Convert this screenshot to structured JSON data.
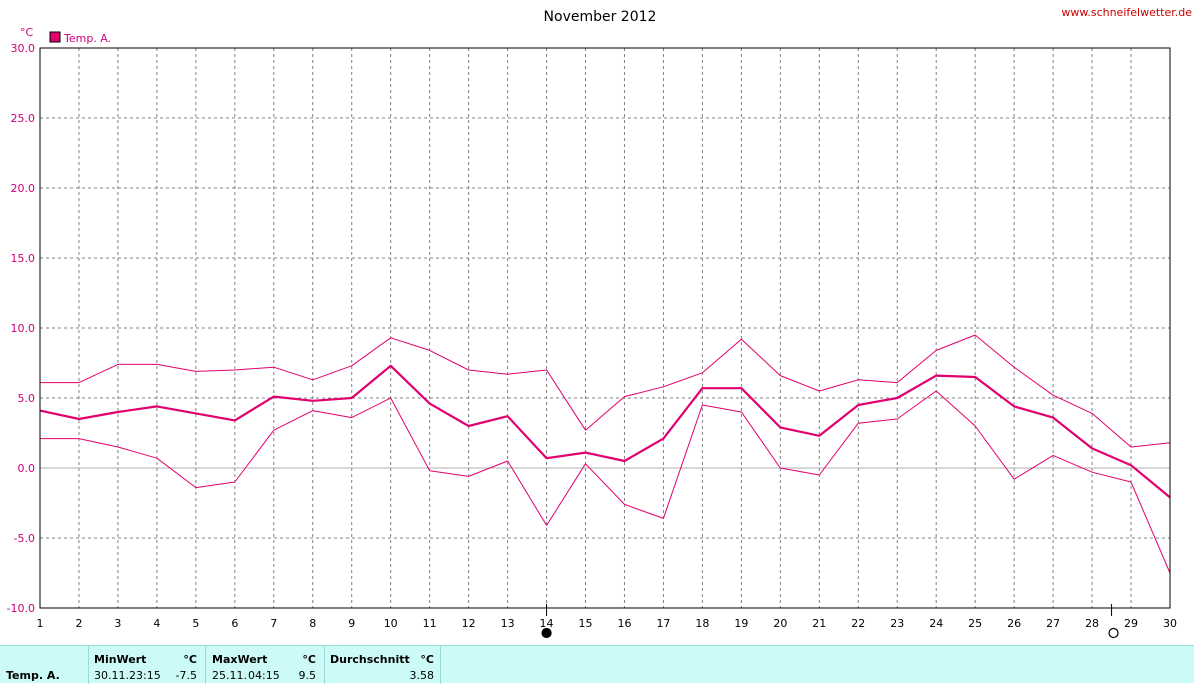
{
  "site": "www.schneifelwetter.de",
  "chart_data": {
    "type": "line",
    "title": "November 2012",
    "ylabel": "°C",
    "ylim": [
      -10,
      30
    ],
    "yticks": [
      "30.0",
      "25.0",
      "20.0",
      "15.0",
      "10.0",
      "5.0",
      "0.0",
      "-5.0",
      "-10.0"
    ],
    "xlim": [
      1,
      30
    ],
    "x": [
      1,
      2,
      3,
      4,
      5,
      6,
      7,
      8,
      9,
      10,
      11,
      12,
      13,
      14,
      15,
      16,
      17,
      18,
      19,
      20,
      21,
      22,
      23,
      24,
      25,
      26,
      27,
      28,
      29,
      30
    ],
    "xtick_labels": [
      "1",
      "2",
      "3",
      "4",
      "5",
      "6",
      "7",
      "8",
      "9",
      "10",
      "11",
      "12",
      "13",
      "14",
      "15",
      "16",
      "17",
      "18",
      "19",
      "20",
      "21",
      "22",
      "23",
      "24",
      "25",
      "26",
      "27",
      "28",
      "29",
      "30"
    ],
    "grid": true,
    "legend": "top-left",
    "legend_label": "Temp. A.",
    "color": "#e0006f",
    "series": [
      {
        "role": "max",
        "values": [
          6.1,
          6.1,
          7.4,
          7.4,
          6.9,
          7.0,
          7.2,
          6.3,
          7.3,
          9.3,
          8.4,
          7.0,
          6.7,
          7.0,
          2.7,
          5.1,
          5.8,
          6.8,
          9.2,
          6.6,
          5.5,
          6.3,
          6.1,
          8.4,
          9.5,
          7.2,
          5.2,
          3.9,
          1.5,
          1.8
        ]
      },
      {
        "role": "avg",
        "values": [
          4.1,
          3.5,
          4.0,
          4.4,
          3.9,
          3.4,
          5.1,
          4.8,
          5.0,
          7.3,
          4.6,
          3.0,
          3.7,
          0.7,
          1.1,
          0.5,
          2.1,
          5.7,
          5.7,
          2.9,
          2.3,
          4.5,
          5.0,
          6.6,
          6.5,
          4.4,
          3.6,
          1.4,
          0.2,
          -2.1
        ]
      },
      {
        "role": "min",
        "values": [
          2.1,
          2.1,
          1.5,
          0.7,
          -1.4,
          -1.0,
          2.7,
          4.1,
          3.6,
          5.0,
          -0.2,
          -0.6,
          0.5,
          -4.1,
          0.3,
          -2.6,
          -3.6,
          4.5,
          4.0,
          0.0,
          -0.5,
          3.2,
          3.5,
          5.5,
          3.0,
          -0.8,
          0.9,
          -0.3,
          -1.0,
          -7.5
        ]
      }
    ],
    "markers": [
      {
        "x": 14,
        "symbol": "full-moon"
      },
      {
        "x": 28.5,
        "symbol": "new-moon"
      }
    ]
  },
  "stats": {
    "row_label": "Temp. A.",
    "min_header": "MinWert",
    "min_unit": "°C",
    "min_date": "30.11.",
    "min_time": "23:15",
    "min_value": "-7.5",
    "max_header": "MaxWert",
    "max_unit": "°C",
    "max_date": "25.11.",
    "max_time": "04:15",
    "max_value": "9.5",
    "avg_header": "Durchschnitt",
    "avg_unit": "°C",
    "avg_value": "3.58"
  }
}
